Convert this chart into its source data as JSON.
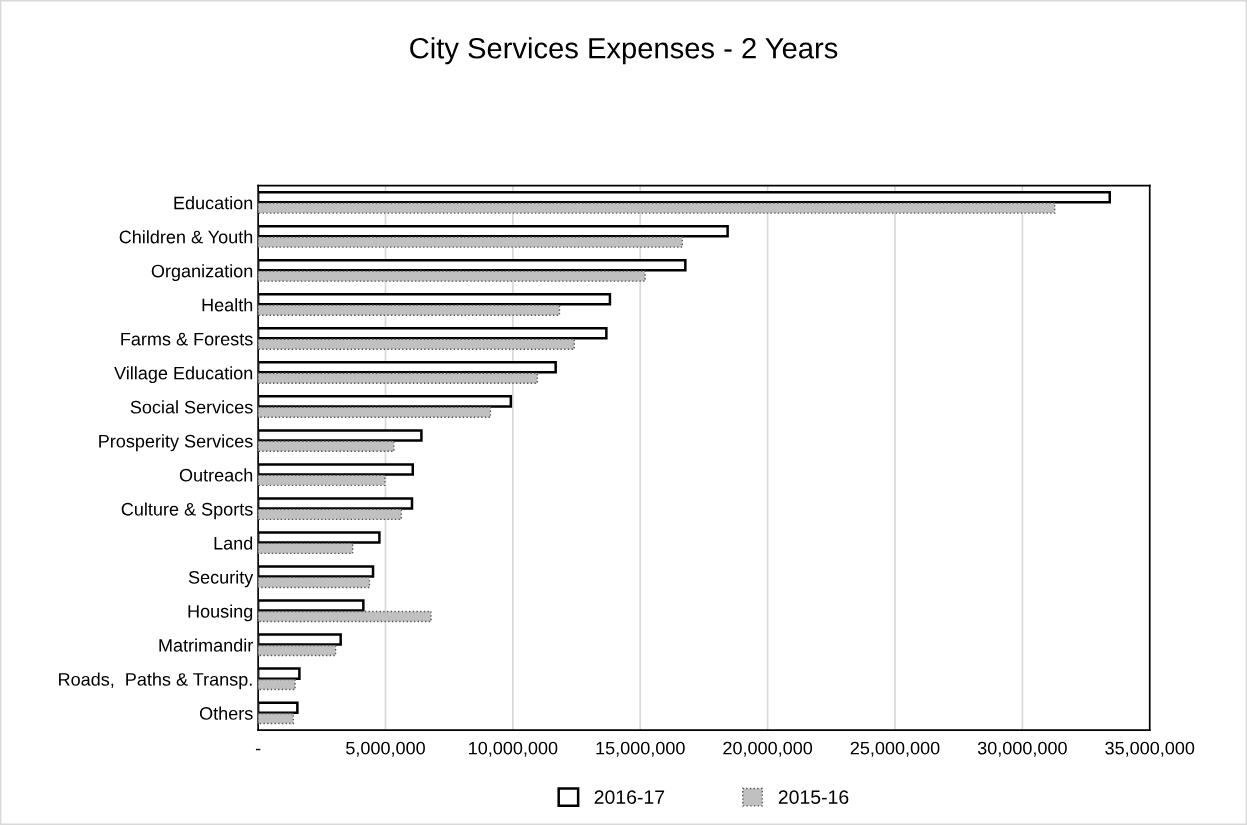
{
  "chart_data": {
    "type": "bar",
    "orientation": "horizontal",
    "title": "City Services Expenses - 2 Years",
    "categories": [
      "Education",
      "Children & Youth",
      "Organization",
      "Health",
      "Farms & Forests",
      "Village Education",
      "Social Services",
      "Prosperity Services",
      "Outreach",
      "Culture & Sports",
      "Land",
      "Security",
      "Housing",
      "Matrimandir",
      "Roads,  Paths & Transp.",
      "Others"
    ],
    "series": [
      {
        "name": "2016-17",
        "color": "#ffffff",
        "values": [
          33430000,
          18430000,
          16770000,
          13810000,
          13670000,
          11680000,
          9920000,
          6410000,
          6070000,
          6040000,
          4760000,
          4510000,
          4130000,
          3240000,
          1620000,
          1540000
        ]
      },
      {
        "name": "2015-16",
        "color": "#c0c0c0",
        "values": [
          31270000,
          16650000,
          15190000,
          11830000,
          12410000,
          10960000,
          9120000,
          5330000,
          4970000,
          5620000,
          3710000,
          4370000,
          6790000,
          3040000,
          1450000,
          1380000
        ]
      }
    ],
    "xlim": [
      0,
      35000000
    ],
    "xticks": [
      {
        "value": 0,
        "label": "-"
      },
      {
        "value": 5000000,
        "label": "5,000,000"
      },
      {
        "value": 10000000,
        "label": "10,000,000"
      },
      {
        "value": 15000000,
        "label": "15,000,000"
      },
      {
        "value": 20000000,
        "label": "20,000,000"
      },
      {
        "value": 25000000,
        "label": "25,000,000"
      },
      {
        "value": 30000000,
        "label": "30,000,000"
      },
      {
        "value": 35000000,
        "label": "35,000,000"
      }
    ],
    "grid": "x",
    "legend": "bottom"
  }
}
